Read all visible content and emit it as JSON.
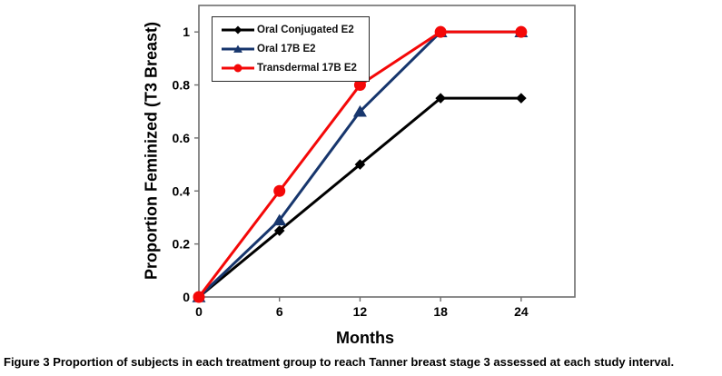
{
  "caption": {
    "label": "Figure 3",
    "text": " Proportion of subjects in each treatment group to reach Tanner breast stage 3 assessed at each study interval."
  },
  "chart_data": {
    "type": "line",
    "title": "",
    "xlabel": "Months",
    "ylabel": "Proportion Feminized (T3 Breast)",
    "x": [
      0,
      6,
      12,
      18,
      24
    ],
    "series": [
      {
        "name": "Oral Conjugated E2",
        "color": "#000000",
        "marker": "diamond",
        "values": [
          0,
          0.25,
          0.5,
          0.75,
          0.75
        ]
      },
      {
        "name": "Oral 17B E2",
        "color": "#17366d",
        "marker": "triangle",
        "values": [
          0,
          0.29,
          0.7,
          1,
          1
        ]
      },
      {
        "name": "Transdermal 17B E2",
        "color": "#f40808",
        "marker": "circle",
        "values": [
          0,
          0.4,
          0.8,
          1,
          1
        ]
      }
    ],
    "xticks": [
      0,
      6,
      12,
      18,
      24
    ],
    "xtick_labels": [
      "0",
      "6",
      "12",
      "18",
      "24"
    ],
    "yticks": [
      0,
      0.2,
      0.4,
      0.6,
      0.8,
      1
    ],
    "ytick_labels": [
      "0",
      "0.2",
      "0.4",
      "0.6",
      "0.8",
      "1"
    ],
    "xlim": [
      0,
      28
    ],
    "ylim": [
      0,
      1.1
    ],
    "grid": false,
    "legend_position": "top-left",
    "axis_color": "#6e6e6e",
    "legend_border_color": "#2b2b2b"
  }
}
